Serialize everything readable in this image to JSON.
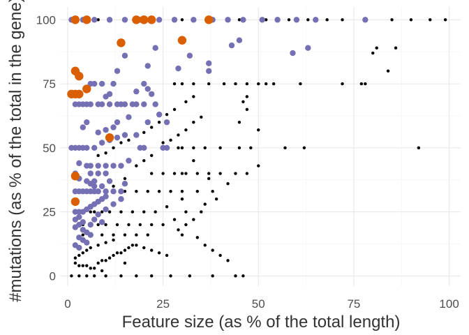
{
  "chart_data": {
    "type": "scatter",
    "title": "",
    "xlabel": "Feature size (as % of the total length)",
    "ylabel": "#mutations (as % of the total in the gene)",
    "xlim": [
      -2,
      103
    ],
    "ylim": [
      -4,
      105
    ],
    "xticks": [
      0,
      25,
      50,
      75,
      100
    ],
    "yticks": [
      0,
      25,
      50,
      75,
      100
    ],
    "grid": true,
    "legend": "none",
    "series": [
      {
        "color": "#000000",
        "marker_size": "small",
        "points": [
          [
            1,
            0
          ],
          [
            3,
            0
          ],
          [
            5,
            0
          ],
          [
            7,
            0
          ],
          [
            10,
            0
          ],
          [
            14,
            0
          ],
          [
            18,
            0
          ],
          [
            22,
            0
          ],
          [
            27,
            0
          ],
          [
            32,
            0
          ],
          [
            38,
            0
          ],
          [
            44,
            0
          ],
          [
            46,
            0
          ],
          [
            2,
            100
          ],
          [
            8,
            100
          ],
          [
            15,
            100
          ],
          [
            22,
            100
          ],
          [
            30,
            100
          ],
          [
            38,
            100
          ],
          [
            45,
            100
          ],
          [
            52,
            100
          ],
          [
            58,
            100
          ],
          [
            63,
            100
          ],
          [
            68,
            100
          ],
          [
            72,
            100
          ],
          [
            78,
            100
          ],
          [
            85,
            100
          ],
          [
            90,
            100
          ],
          [
            95,
            100
          ],
          [
            99,
            100
          ],
          [
            81,
            89
          ],
          [
            86,
            89
          ],
          [
            80,
            87
          ],
          [
            84,
            80
          ],
          [
            78,
            75
          ],
          [
            77,
            75
          ],
          [
            72,
            75
          ],
          [
            61,
            75
          ],
          [
            54,
            75
          ],
          [
            52,
            75
          ],
          [
            50,
            75
          ],
          [
            47,
            75
          ],
          [
            44,
            75
          ],
          [
            41,
            75
          ],
          [
            37,
            75
          ],
          [
            33,
            75
          ],
          [
            30,
            75
          ],
          [
            28,
            75
          ],
          [
            47,
            70
          ],
          [
            46,
            68
          ],
          [
            47,
            65
          ],
          [
            45,
            60
          ],
          [
            50,
            57
          ],
          [
            92,
            50
          ],
          [
            62,
            50
          ],
          [
            57,
            50
          ],
          [
            48,
            50
          ],
          [
            45,
            50
          ],
          [
            40,
            50
          ],
          [
            36,
            50
          ],
          [
            33,
            50
          ],
          [
            30,
            50
          ],
          [
            29,
            50
          ],
          [
            50,
            43
          ],
          [
            47,
            40
          ],
          [
            44,
            40
          ],
          [
            40,
            40
          ],
          [
            37,
            40
          ],
          [
            34,
            40
          ],
          [
            31,
            40
          ],
          [
            28,
            40
          ],
          [
            25,
            40
          ],
          [
            22,
            40
          ],
          [
            42,
            36
          ],
          [
            38,
            33
          ],
          [
            34,
            33
          ],
          [
            30,
            33
          ],
          [
            27,
            33
          ],
          [
            24,
            33
          ],
          [
            21,
            33
          ],
          [
            18,
            33
          ],
          [
            15,
            33
          ],
          [
            12,
            33
          ],
          [
            30,
            30
          ],
          [
            26,
            27
          ],
          [
            23,
            25
          ],
          [
            20,
            25
          ],
          [
            17,
            25
          ],
          [
            14,
            25
          ],
          [
            11,
            25
          ],
          [
            9,
            25
          ],
          [
            7,
            25
          ],
          [
            6,
            25
          ],
          [
            31,
            25
          ],
          [
            28,
            22
          ],
          [
            25,
            20
          ],
          [
            22,
            20
          ],
          [
            19,
            20
          ],
          [
            16,
            20
          ],
          [
            13,
            20
          ],
          [
            10,
            20
          ],
          [
            8,
            20
          ],
          [
            6,
            20
          ],
          [
            4,
            20
          ],
          [
            30,
            16
          ],
          [
            21,
            16
          ],
          [
            18,
            16
          ],
          [
            15,
            16
          ],
          [
            12,
            16
          ],
          [
            9,
            16
          ],
          [
            6,
            16
          ],
          [
            4,
            16
          ],
          [
            3,
            15
          ],
          [
            12,
            14
          ],
          [
            10,
            13
          ],
          [
            8,
            12
          ],
          [
            6,
            11
          ],
          [
            5,
            10
          ],
          [
            4,
            9
          ],
          [
            3,
            8
          ],
          [
            2,
            7
          ],
          [
            2,
            5
          ],
          [
            3,
            4
          ],
          [
            4,
            4
          ],
          [
            5,
            4
          ],
          [
            6,
            3
          ],
          [
            7,
            3
          ],
          [
            8,
            5
          ],
          [
            9,
            6
          ],
          [
            10,
            6
          ],
          [
            11,
            7
          ],
          [
            12,
            8
          ],
          [
            13,
            9
          ],
          [
            14,
            9
          ],
          [
            15,
            10
          ],
          [
            16,
            11
          ],
          [
            17,
            12
          ],
          [
            18,
            12
          ],
          [
            20,
            11
          ],
          [
            22,
            10
          ],
          [
            24,
            9
          ],
          [
            26,
            8
          ],
          [
            15,
            5
          ],
          [
            9,
            2
          ],
          [
            25,
            50
          ],
          [
            22,
            47
          ],
          [
            20,
            45
          ],
          [
            18,
            43
          ],
          [
            15,
            38
          ],
          [
            12,
            35
          ],
          [
            10,
            31
          ],
          [
            8,
            29
          ],
          [
            35,
            62
          ],
          [
            33,
            60
          ],
          [
            31,
            57
          ],
          [
            29,
            55
          ],
          [
            27,
            53
          ],
          [
            25,
            52
          ],
          [
            33,
            70
          ],
          [
            31,
            68
          ],
          [
            28,
            65
          ],
          [
            26,
            63
          ],
          [
            24,
            60
          ],
          [
            22,
            58
          ],
          [
            20,
            56
          ],
          [
            18,
            55
          ],
          [
            16,
            53
          ],
          [
            14,
            52
          ],
          [
            12,
            50
          ],
          [
            10,
            48
          ],
          [
            8,
            47
          ],
          [
            35,
            25
          ],
          [
            33,
            22
          ],
          [
            31,
            20
          ],
          [
            29,
            18
          ],
          [
            34,
            15
          ],
          [
            36,
            12
          ],
          [
            38,
            10
          ],
          [
            40,
            8
          ],
          [
            42,
            6
          ],
          [
            36,
            28
          ],
          [
            39,
            30
          ],
          [
            30,
            40
          ],
          [
            33,
            45
          ],
          [
            37,
            38
          ]
        ]
      },
      {
        "color": "#7570b3",
        "marker_size": "medium",
        "points": [
          [
            1,
            100
          ],
          [
            4,
            100
          ],
          [
            7,
            100
          ],
          [
            11,
            100
          ],
          [
            15,
            100
          ],
          [
            19,
            100
          ],
          [
            24,
            100
          ],
          [
            28,
            100
          ],
          [
            33,
            100
          ],
          [
            38,
            100
          ],
          [
            42,
            100
          ],
          [
            46,
            100
          ],
          [
            51,
            100
          ],
          [
            55,
            100
          ],
          [
            60,
            100
          ],
          [
            65,
            100
          ],
          [
            78,
            100
          ],
          [
            63,
            89
          ],
          [
            59,
            87
          ],
          [
            45,
            92
          ],
          [
            43,
            90
          ],
          [
            37,
            83
          ],
          [
            37,
            80
          ],
          [
            32,
            86
          ],
          [
            29,
            81
          ],
          [
            23,
            89
          ],
          [
            21,
            82
          ],
          [
            15,
            86
          ],
          [
            13,
            80
          ],
          [
            12,
            75
          ],
          [
            9,
            75
          ],
          [
            7,
            75
          ],
          [
            6,
            75
          ],
          [
            11,
            71
          ],
          [
            10,
            70
          ],
          [
            20,
            75
          ],
          [
            22,
            71
          ],
          [
            21,
            73
          ],
          [
            18,
            72
          ],
          [
            23,
            67
          ],
          [
            20,
            67
          ],
          [
            18,
            67
          ],
          [
            17,
            67
          ],
          [
            15,
            67
          ],
          [
            14,
            67
          ],
          [
            13,
            67
          ],
          [
            11,
            67
          ],
          [
            9,
            67
          ],
          [
            8,
            67
          ],
          [
            6,
            67
          ],
          [
            5,
            67
          ],
          [
            4,
            67
          ],
          [
            3,
            67
          ],
          [
            2,
            67
          ],
          [
            26,
            60
          ],
          [
            24,
            63
          ],
          [
            21,
            60
          ],
          [
            16,
            62
          ],
          [
            13,
            60
          ],
          [
            12,
            58
          ],
          [
            10,
            57
          ],
          [
            8,
            56
          ],
          [
            5,
            60
          ],
          [
            4,
            58
          ],
          [
            18,
            55
          ],
          [
            15,
            55
          ],
          [
            13,
            54
          ],
          [
            11,
            53
          ],
          [
            9,
            52
          ],
          [
            7,
            50
          ],
          [
            5,
            50
          ],
          [
            4,
            50
          ],
          [
            3,
            50
          ],
          [
            2,
            50
          ],
          [
            1,
            50
          ],
          [
            19,
            50
          ],
          [
            20,
            50
          ],
          [
            25,
            50
          ],
          [
            26,
            50
          ],
          [
            3,
            44
          ],
          [
            5,
            43
          ],
          [
            6,
            43
          ],
          [
            8,
            43
          ],
          [
            10,
            43
          ],
          [
            12,
            43
          ],
          [
            14,
            43
          ],
          [
            16,
            45
          ],
          [
            6,
            40
          ],
          [
            8,
            40
          ],
          [
            10,
            40
          ],
          [
            2,
            40
          ],
          [
            3,
            38
          ],
          [
            5,
            37
          ],
          [
            7,
            37
          ],
          [
            11,
            37
          ],
          [
            6,
            36
          ],
          [
            7,
            35
          ],
          [
            9,
            35
          ],
          [
            2,
            33
          ],
          [
            3,
            33
          ],
          [
            4,
            33
          ],
          [
            5,
            33
          ],
          [
            6,
            33
          ],
          [
            7,
            33
          ],
          [
            8,
            33
          ],
          [
            10,
            33
          ],
          [
            12,
            33
          ],
          [
            14,
            33
          ],
          [
            15,
            36
          ],
          [
            10,
            31
          ],
          [
            9,
            30
          ],
          [
            8,
            29
          ],
          [
            7,
            28
          ],
          [
            6,
            27
          ],
          [
            5,
            26
          ],
          [
            4,
            25
          ],
          [
            3,
            25
          ],
          [
            2,
            25
          ],
          [
            3,
            23
          ],
          [
            2,
            22
          ],
          [
            3,
            20
          ],
          [
            2,
            19
          ],
          [
            4,
            18
          ],
          [
            5,
            17
          ],
          [
            6,
            16
          ],
          [
            3,
            15
          ],
          [
            4,
            14
          ],
          [
            5,
            13
          ],
          [
            2,
            12
          ],
          [
            3,
            11
          ],
          [
            7,
            22
          ],
          [
            9,
            21
          ],
          [
            6,
            20
          ],
          [
            4,
            21
          ],
          [
            8,
            24
          ],
          [
            10,
            26
          ],
          [
            12,
            28
          ],
          [
            14,
            30
          ]
        ]
      },
      {
        "color": "#d95f02",
        "marker_size": "large",
        "points": [
          [
            2,
            100
          ],
          [
            5,
            100
          ],
          [
            18,
            100
          ],
          [
            20,
            100
          ],
          [
            22,
            100
          ],
          [
            37,
            100
          ],
          [
            30,
            92
          ],
          [
            14,
            91
          ],
          [
            2,
            80
          ],
          [
            3,
            78
          ],
          [
            1,
            71
          ],
          [
            2,
            71
          ],
          [
            3,
            71
          ],
          [
            5,
            73
          ],
          [
            11,
            54
          ],
          [
            2,
            39
          ],
          [
            2,
            29
          ]
        ]
      }
    ]
  }
}
